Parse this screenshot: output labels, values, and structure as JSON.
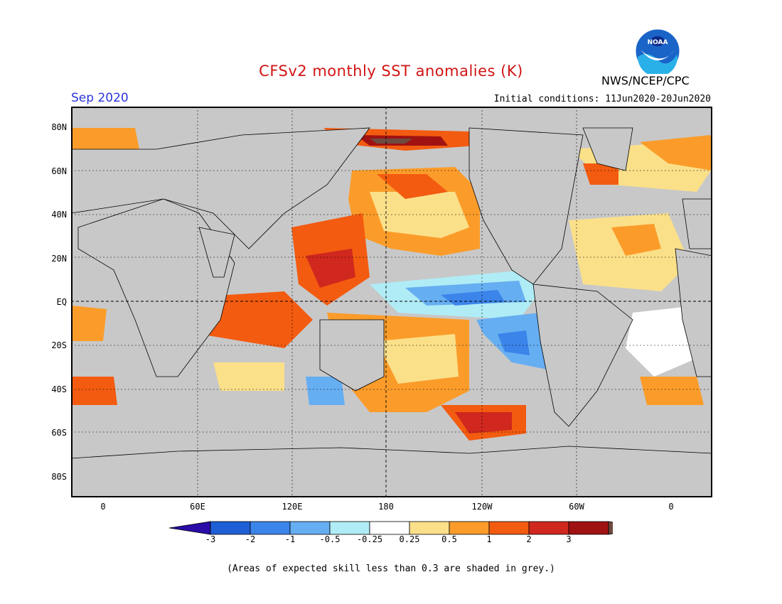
{
  "title": "CFSv2 monthly SST anomalies (K)",
  "month": "Sep 2020",
  "initial_conditions": "Initial conditions: 11Jun2020-20Jun2020",
  "agency": "NWS/NCEP/CPC",
  "logo_text": "NOAA",
  "lat_labels": [
    "80N",
    "60N",
    "40N",
    "20N",
    "EQ",
    "20S",
    "40S",
    "60S",
    "80S"
  ],
  "lon_labels": [
    "0",
    "60E",
    "120E",
    "180",
    "120W",
    "60W",
    "0"
  ],
  "colorbar": {
    "labels": [
      "-3",
      "-2",
      "-1",
      "-0.5",
      "-0.25",
      "0.25",
      "0.5",
      "1",
      "2",
      "3"
    ],
    "colors": [
      "#2a0ca6",
      "#1f5fd6",
      "#3b84ea",
      "#66aef2",
      "#b0ecf5",
      "#ffffff",
      "#fbe08a",
      "#fb9c2a",
      "#f35b10",
      "#d0271e",
      "#a01212",
      "#6e4a40"
    ]
  },
  "note": "(Areas of expected skill less than 0.3 are shaded in grey.)",
  "colors": {
    "land": "#c8c8c8",
    "ocean_mask": "#c8c8c8",
    "title": "#d21414",
    "month": "#2a34d8"
  }
}
